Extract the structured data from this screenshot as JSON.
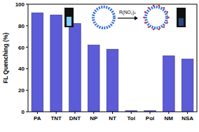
{
  "chart_data": {
    "type": "bar",
    "y_label": "FL Quenching (%)",
    "categories": [
      "PA",
      "TNT",
      "DNT",
      "NP",
      "NT",
      "Tol",
      "Pol",
      "NM",
      "NSA"
    ],
    "values": [
      92,
      90,
      82,
      62,
      58,
      1,
      1,
      52,
      49
    ],
    "color": "#5c5cd8",
    "ylim": [
      0,
      100
    ],
    "yticks": [
      0,
      20,
      40,
      60,
      80,
      100
    ],
    "grid": false,
    "annotations": [
      "R(NO₂)ₙ"
    ]
  }
}
